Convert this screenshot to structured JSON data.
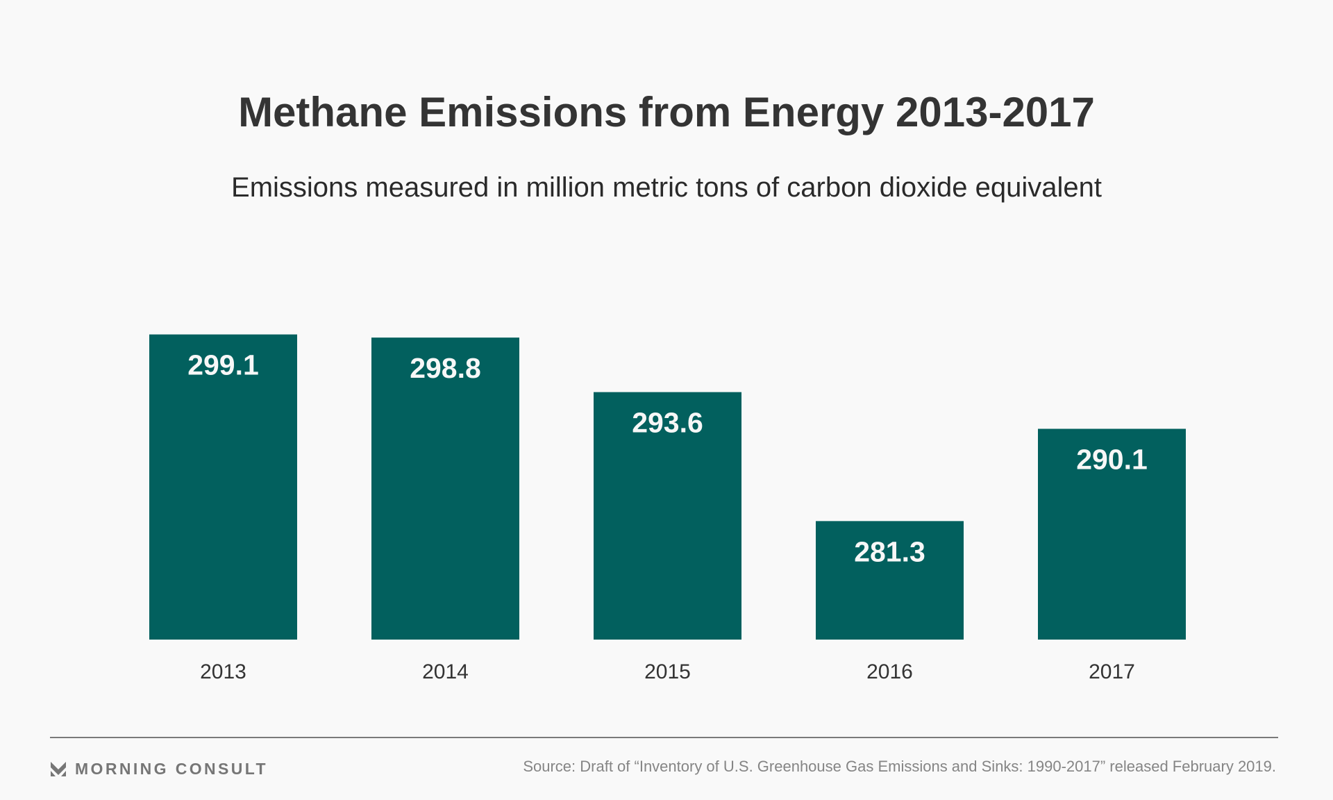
{
  "header": {
    "title": "Methane Emissions from Energy 2013-2017",
    "subtitle": "Emissions measured in million metric tons of carbon dioxide equivalent"
  },
  "chart_data": {
    "type": "bar",
    "title": "Methane Emissions from Energy 2013-2017",
    "subtitle": "Emissions measured in million metric tons of carbon dioxide equivalent",
    "xlabel": "",
    "ylabel": "",
    "categories": [
      "2013",
      "2014",
      "2015",
      "2016",
      "2017"
    ],
    "values": [
      299.1,
      298.8,
      293.6,
      281.3,
      290.1
    ],
    "value_labels": [
      "299.1",
      "298.8",
      "293.6",
      "281.3",
      "290.1"
    ],
    "ylim": [
      270,
      300
    ],
    "grid": false,
    "legend": "none",
    "bar_color": "#02605e",
    "value_label_color": "#f7f7f7",
    "category_label_color": "#333333"
  },
  "footer": {
    "brand": "MORNING CONSULT",
    "brand_icon": "morning-consult-logo-icon",
    "source": "Source: Draft of “Inventory of U.S. Greenhouse Gas Emissions and Sinks: 1990-2017” released February 2019."
  },
  "colors": {
    "background": "#f9f9f9",
    "title": "#343434",
    "footer_text": "#858585",
    "logo": "#767676",
    "divider": "#7a7a7a"
  }
}
